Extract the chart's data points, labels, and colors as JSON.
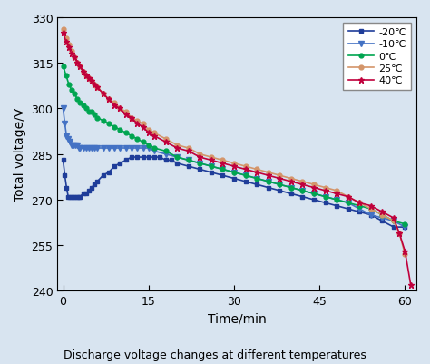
{
  "title": "Discharge voltage changes at different temperatures",
  "xlabel": "Time/min",
  "ylabel": "Total voltage/V",
  "xlim": [
    -1,
    62
  ],
  "ylim": [
    240,
    330
  ],
  "xticks": [
    0,
    15,
    30,
    45,
    60
  ],
  "yticks": [
    240,
    255,
    270,
    285,
    300,
    315,
    330
  ],
  "background_color": "#d8e4f0",
  "plot_bg_color": "#d8e4f0",
  "series": [
    {
      "label": "-20℃",
      "color": "#1f3d99",
      "marker": "s",
      "markersize": 3.5,
      "markevery": 1,
      "linewidth": 1.2,
      "time": [
        0,
        0.3,
        0.6,
        0.9,
        1.2,
        1.5,
        1.8,
        2.1,
        2.4,
        2.7,
        3.0,
        3.5,
        4.0,
        4.5,
        5.0,
        5.5,
        6.0,
        7.0,
        8.0,
        9.0,
        10.0,
        11.0,
        12.0,
        13.0,
        14.0,
        15.0,
        16.0,
        17.0,
        18.0,
        19.0,
        20.0,
        22.0,
        24.0,
        26.0,
        28.0,
        30.0,
        32.0,
        34.0,
        36.0,
        38.0,
        40.0,
        42.0,
        44.0,
        46.0,
        48.0,
        50.0,
        52.0,
        54.0,
        56.0,
        58.0,
        60.0
      ],
      "voltage": [
        283,
        278,
        274,
        271,
        271,
        271,
        271,
        271,
        271,
        271,
        271,
        272,
        272,
        273,
        274,
        275,
        276,
        278,
        279,
        281,
        282,
        283,
        284,
        284,
        284,
        284,
        284,
        284,
        283,
        283,
        282,
        281,
        280,
        279,
        278,
        277,
        276,
        275,
        274,
        273,
        272,
        271,
        270,
        269,
        268,
        267,
        266,
        265,
        263,
        261,
        261
      ]
    },
    {
      "label": "-10℃",
      "color": "#4472c4",
      "marker": "v",
      "markersize": 4,
      "markevery": 1,
      "linewidth": 1.2,
      "time": [
        0,
        0.3,
        0.6,
        0.9,
        1.2,
        1.5,
        1.8,
        2.1,
        2.4,
        2.7,
        3.0,
        3.5,
        4.0,
        4.5,
        5.0,
        5.5,
        6.0,
        7.0,
        8.0,
        9.0,
        10.0,
        11.0,
        12.0,
        13.0,
        14.0,
        15.0,
        16.0,
        18.0,
        20.0,
        22.0,
        24.0,
        26.0,
        28.0,
        30.0,
        32.0,
        34.0,
        36.0,
        38.0,
        40.0,
        42.0,
        44.0,
        46.0,
        48.0,
        50.0,
        52.0,
        54.0,
        56.0,
        58.0,
        60.0
      ],
      "voltage": [
        300,
        295,
        291,
        290,
        289,
        288,
        288,
        288,
        288,
        287,
        287,
        287,
        287,
        287,
        287,
        287,
        287,
        287,
        287,
        287,
        287,
        287,
        287,
        287,
        287,
        287,
        286,
        285,
        284,
        283,
        282,
        281,
        280,
        279,
        278,
        277,
        276,
        275,
        274,
        273,
        272,
        271,
        270,
        269,
        267,
        265,
        264,
        263,
        261
      ]
    },
    {
      "label": "0℃",
      "color": "#00a550",
      "marker": "o",
      "markersize": 3.5,
      "markevery": 1,
      "linewidth": 1.2,
      "time": [
        0,
        0.5,
        1.0,
        1.5,
        2.0,
        2.5,
        3.0,
        3.5,
        4.0,
        4.5,
        5.0,
        5.5,
        6.0,
        7.0,
        8.0,
        9.0,
        10.0,
        11.0,
        12.0,
        13.0,
        14.0,
        15.0,
        16.0,
        18.0,
        20.0,
        22.0,
        24.0,
        26.0,
        28.0,
        30.0,
        32.0,
        34.0,
        36.0,
        38.0,
        40.0,
        42.0,
        44.0,
        46.0,
        48.0,
        50.0,
        52.0,
        54.0,
        56.0,
        58.0,
        60.0
      ],
      "voltage": [
        314,
        311,
        308,
        306,
        305,
        303,
        302,
        301,
        300,
        299,
        299,
        298,
        297,
        296,
        295,
        294,
        293,
        292,
        291,
        290,
        289,
        288,
        287,
        286,
        284,
        283,
        282,
        281,
        280,
        279,
        278,
        277,
        276,
        275,
        274,
        273,
        272,
        271,
        270,
        269,
        268,
        267,
        265,
        263,
        262
      ]
    },
    {
      "label": "25℃",
      "color": "#d4956a",
      "marker": "o",
      "markersize": 3.5,
      "markevery": 1,
      "linewidth": 1.2,
      "time": [
        0,
        0.5,
        1.0,
        1.5,
        2.0,
        2.5,
        3.0,
        3.5,
        4.0,
        4.5,
        5.0,
        5.5,
        6.0,
        7.0,
        8.0,
        9.0,
        10.0,
        11.0,
        12.0,
        13.0,
        14.0,
        15.0,
        16.0,
        18.0,
        20.0,
        22.0,
        24.0,
        26.0,
        28.0,
        30.0,
        32.0,
        34.0,
        36.0,
        38.0,
        40.0,
        42.0,
        44.0,
        46.0,
        48.0,
        50.0,
        52.0,
        54.0,
        56.0,
        58.0,
        59.0,
        60.0
      ],
      "voltage": [
        326,
        323,
        321,
        319,
        317,
        315,
        314,
        312,
        311,
        310,
        309,
        308,
        307,
        305,
        303,
        302,
        300,
        299,
        297,
        296,
        295,
        293,
        292,
        290,
        288,
        287,
        285,
        284,
        283,
        282,
        281,
        280,
        279,
        278,
        277,
        276,
        275,
        274,
        273,
        271,
        269,
        267,
        265,
        263,
        259,
        252
      ]
    },
    {
      "label": "40℃",
      "color": "#c0003c",
      "marker": "*",
      "markersize": 5,
      "markevery": 1,
      "linewidth": 1.2,
      "time": [
        0,
        0.5,
        1.0,
        1.5,
        2.0,
        2.5,
        3.0,
        3.5,
        4.0,
        4.5,
        5.0,
        5.5,
        6.0,
        7.0,
        8.0,
        9.0,
        10.0,
        11.0,
        12.0,
        13.0,
        14.0,
        15.0,
        16.0,
        18.0,
        20.0,
        22.0,
        24.0,
        26.0,
        28.0,
        30.0,
        32.0,
        34.0,
        36.0,
        38.0,
        40.0,
        42.0,
        44.0,
        46.0,
        48.0,
        50.0,
        52.0,
        54.0,
        56.0,
        58.0,
        59.0,
        60.0,
        61.0
      ],
      "voltage": [
        325,
        322,
        320,
        318,
        317,
        315,
        314,
        312,
        311,
        310,
        309,
        308,
        307,
        305,
        303,
        301,
        300,
        298,
        297,
        295,
        294,
        292,
        291,
        289,
        287,
        286,
        284,
        283,
        282,
        281,
        280,
        279,
        278,
        277,
        276,
        275,
        274,
        273,
        272,
        271,
        269,
        268,
        266,
        264,
        259,
        253,
        242
      ]
    }
  ]
}
